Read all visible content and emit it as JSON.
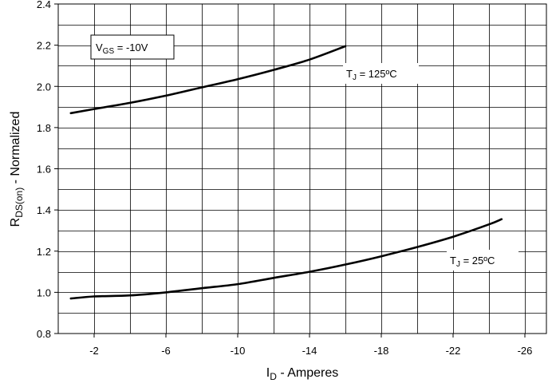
{
  "chart_data": {
    "type": "line",
    "xlabel": {
      "main": "I",
      "sub": "D",
      "rest": " - Amperes"
    },
    "ylabel": {
      "main": "R",
      "sub": "DS(on)",
      "rest": " - Normalized"
    },
    "xlim": [
      0,
      -27.2
    ],
    "ylim": [
      0.8,
      2.4
    ],
    "x_ticks": [
      -2,
      -6,
      -10,
      -14,
      -18,
      -22,
      -26
    ],
    "y_ticks": [
      0.8,
      1.0,
      1.2,
      1.4,
      1.6,
      1.8,
      2.0,
      2.2,
      2.4
    ],
    "x_minor_step": -2,
    "y_minor_step": 0.1,
    "grid": true,
    "series": [
      {
        "x": [
          -0.7,
          -2,
          -4,
          -6,
          -8,
          -10,
          -12,
          -14,
          -16
        ],
        "y": [
          1.87,
          1.89,
          1.92,
          1.955,
          1.995,
          2.035,
          2.08,
          2.13,
          2.195
        ]
      },
      {
        "x": [
          -0.7,
          -2,
          -4,
          -6,
          -8,
          -10,
          -12,
          -14,
          -16,
          -18,
          -20,
          -22,
          -24,
          -24.7
        ],
        "y": [
          0.97,
          0.98,
          0.985,
          1.0,
          1.02,
          1.04,
          1.07,
          1.1,
          1.135,
          1.175,
          1.22,
          1.27,
          1.33,
          1.355
        ]
      }
    ],
    "annotations": {
      "vgs": {
        "main": "V",
        "sub": "GS",
        "rest": " = -10V"
      },
      "tj_hot": {
        "main": "T",
        "sub": "J",
        "rest": " = 125ºC"
      },
      "tj_room": {
        "main": "T",
        "sub": "J",
        "rest": " = 25ºC"
      }
    },
    "colors": {
      "line": "#000000",
      "grid": "#000000",
      "background": "#ffffff"
    }
  }
}
